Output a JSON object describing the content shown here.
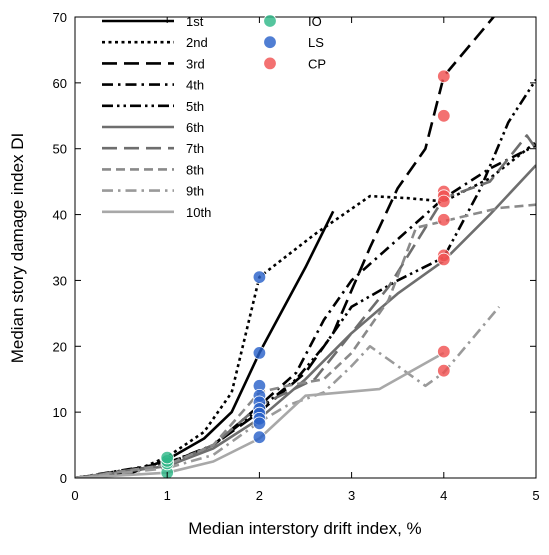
{
  "chart_data": {
    "type": "line",
    "title": "",
    "xlabel": "Median interstory drift index, %",
    "ylabel": "Median story damage index DI",
    "xlim": [
      0,
      5
    ],
    "ylim": [
      0,
      70
    ],
    "xticks": [
      "0",
      "1",
      "2",
      "3",
      "4",
      "5"
    ],
    "yticks": [
      "0",
      "10",
      "20",
      "30",
      "40",
      "50",
      "60",
      "70"
    ],
    "grid": false,
    "legend_position": "top-left",
    "series": [
      {
        "name": "1st",
        "color": "#000000",
        "style": "solid",
        "points": [
          [
            0,
            0
          ],
          [
            0.6,
            0.7
          ],
          [
            1,
            2.8
          ],
          [
            1.4,
            6
          ],
          [
            1.7,
            10
          ],
          [
            2,
            19
          ],
          [
            2.5,
            32
          ],
          [
            2.8,
            40.5
          ]
        ]
      },
      {
        "name": "2nd",
        "color": "#000000",
        "style": "dotted",
        "points": [
          [
            0,
            0
          ],
          [
            0.6,
            0.8
          ],
          [
            1,
            3.2
          ],
          [
            1.4,
            7
          ],
          [
            1.7,
            13
          ],
          [
            2,
            30.5
          ],
          [
            2.6,
            37
          ],
          [
            3.2,
            42.8
          ],
          [
            3.6,
            42.5
          ],
          [
            4,
            42
          ],
          [
            4.5,
            45.5
          ],
          [
            5,
            51
          ]
        ]
      },
      {
        "name": "3rd",
        "color": "#000000",
        "style": "longdash",
        "points": [
          [
            0,
            0
          ],
          [
            1,
            2
          ],
          [
            1.5,
            5
          ],
          [
            2,
            10
          ],
          [
            2.5,
            16
          ],
          [
            2.8,
            22
          ],
          [
            3.2,
            35
          ],
          [
            3.5,
            44
          ],
          [
            3.8,
            50
          ],
          [
            4,
            61
          ],
          [
            4.3,
            66
          ],
          [
            4.6,
            71
          ]
        ]
      },
      {
        "name": "4th",
        "color": "#000000",
        "style": "dashdot",
        "points": [
          [
            0,
            0
          ],
          [
            1,
            2.3
          ],
          [
            1.5,
            5
          ],
          [
            2,
            11
          ],
          [
            2.4,
            16
          ],
          [
            2.7,
            24
          ],
          [
            3,
            30
          ],
          [
            3.4,
            35
          ],
          [
            3.8,
            40
          ],
          [
            4,
            42.5
          ],
          [
            4.5,
            47
          ],
          [
            5,
            50.5
          ]
        ]
      },
      {
        "name": "5th",
        "color": "#000000",
        "style": "dashdotdot",
        "points": [
          [
            0,
            0
          ],
          [
            1,
            2.2
          ],
          [
            1.5,
            5
          ],
          [
            2,
            10.5
          ],
          [
            2.4,
            15
          ],
          [
            2.7,
            20
          ],
          [
            3,
            26
          ],
          [
            3.5,
            30
          ],
          [
            4,
            33.5
          ],
          [
            4.4,
            44
          ],
          [
            4.7,
            54
          ],
          [
            5,
            60.5
          ]
        ]
      },
      {
        "name": "6th",
        "color": "#6e6e6e",
        "style": "solid",
        "points": [
          [
            0,
            0
          ],
          [
            1,
            1.8
          ],
          [
            1.5,
            4.5
          ],
          [
            2,
            9
          ],
          [
            2.5,
            15
          ],
          [
            3,
            22
          ],
          [
            3.5,
            28
          ],
          [
            4,
            33
          ],
          [
            4.5,
            40
          ],
          [
            5,
            47.5
          ]
        ]
      },
      {
        "name": "7th",
        "color": "#6e6e6e",
        "style": "longdash",
        "points": [
          [
            0,
            0
          ],
          [
            1,
            2
          ],
          [
            1.5,
            5
          ],
          [
            2,
            11
          ],
          [
            2.6,
            15
          ],
          [
            3,
            22
          ],
          [
            3.4,
            29
          ],
          [
            3.8,
            38
          ],
          [
            4,
            42.5
          ],
          [
            4.5,
            45
          ],
          [
            4.9,
            52
          ],
          [
            5,
            50
          ]
        ]
      },
      {
        "name": "8th",
        "color": "#8a8a8a",
        "style": "dashed",
        "points": [
          [
            0,
            0
          ],
          [
            1,
            2
          ],
          [
            1.5,
            5
          ],
          [
            2,
            13
          ],
          [
            2.3,
            14
          ],
          [
            2.7,
            15
          ],
          [
            3,
            19
          ],
          [
            3.4,
            27
          ],
          [
            3.7,
            38
          ],
          [
            4,
            39
          ],
          [
            4.6,
            41
          ],
          [
            5,
            41.5
          ]
        ]
      },
      {
        "name": "9th",
        "color": "#9a9a9a",
        "style": "dashdot",
        "points": [
          [
            0,
            0
          ],
          [
            1,
            1.5
          ],
          [
            1.5,
            3.5
          ],
          [
            2,
            8.5
          ],
          [
            2.3,
            11
          ],
          [
            2.7,
            13
          ],
          [
            3,
            17
          ],
          [
            3.2,
            20
          ],
          [
            3.5,
            17
          ],
          [
            3.8,
            14
          ],
          [
            4,
            16
          ],
          [
            4.3,
            21
          ],
          [
            4.6,
            26
          ]
        ]
      },
      {
        "name": "10th",
        "color": "#a8a8a8",
        "style": "solid",
        "points": [
          [
            0,
            0
          ],
          [
            1,
            0.8
          ],
          [
            1.5,
            2.5
          ],
          [
            2,
            6
          ],
          [
            2.5,
            12.5
          ],
          [
            3.3,
            13.5
          ],
          [
            4,
            19
          ]
        ]
      }
    ],
    "markers": [
      {
        "name": "IO",
        "color": "#2fb889",
        "points": [
          [
            1,
            0.8
          ],
          [
            1,
            2.2
          ],
          [
            1,
            2.6
          ],
          [
            1,
            3.1
          ]
        ]
      },
      {
        "name": "LS",
        "color": "#2a62c9",
        "points": [
          [
            2,
            30.5
          ],
          [
            2,
            19
          ],
          [
            2,
            14
          ],
          [
            2,
            12.5
          ],
          [
            2,
            11.5
          ],
          [
            2,
            10.5
          ],
          [
            2,
            9.8
          ],
          [
            2,
            9
          ],
          [
            2,
            8.3
          ],
          [
            2,
            6.2
          ]
        ]
      },
      {
        "name": "CP",
        "color": "#f05252",
        "points": [
          [
            4,
            61
          ],
          [
            4,
            55
          ],
          [
            4,
            43.5
          ],
          [
            4,
            42.8
          ],
          [
            4,
            42
          ],
          [
            4,
            39.2
          ],
          [
            4,
            33.8
          ],
          [
            4,
            33.2
          ],
          [
            4,
            19.2
          ],
          [
            4,
            16.3
          ]
        ]
      }
    ]
  }
}
